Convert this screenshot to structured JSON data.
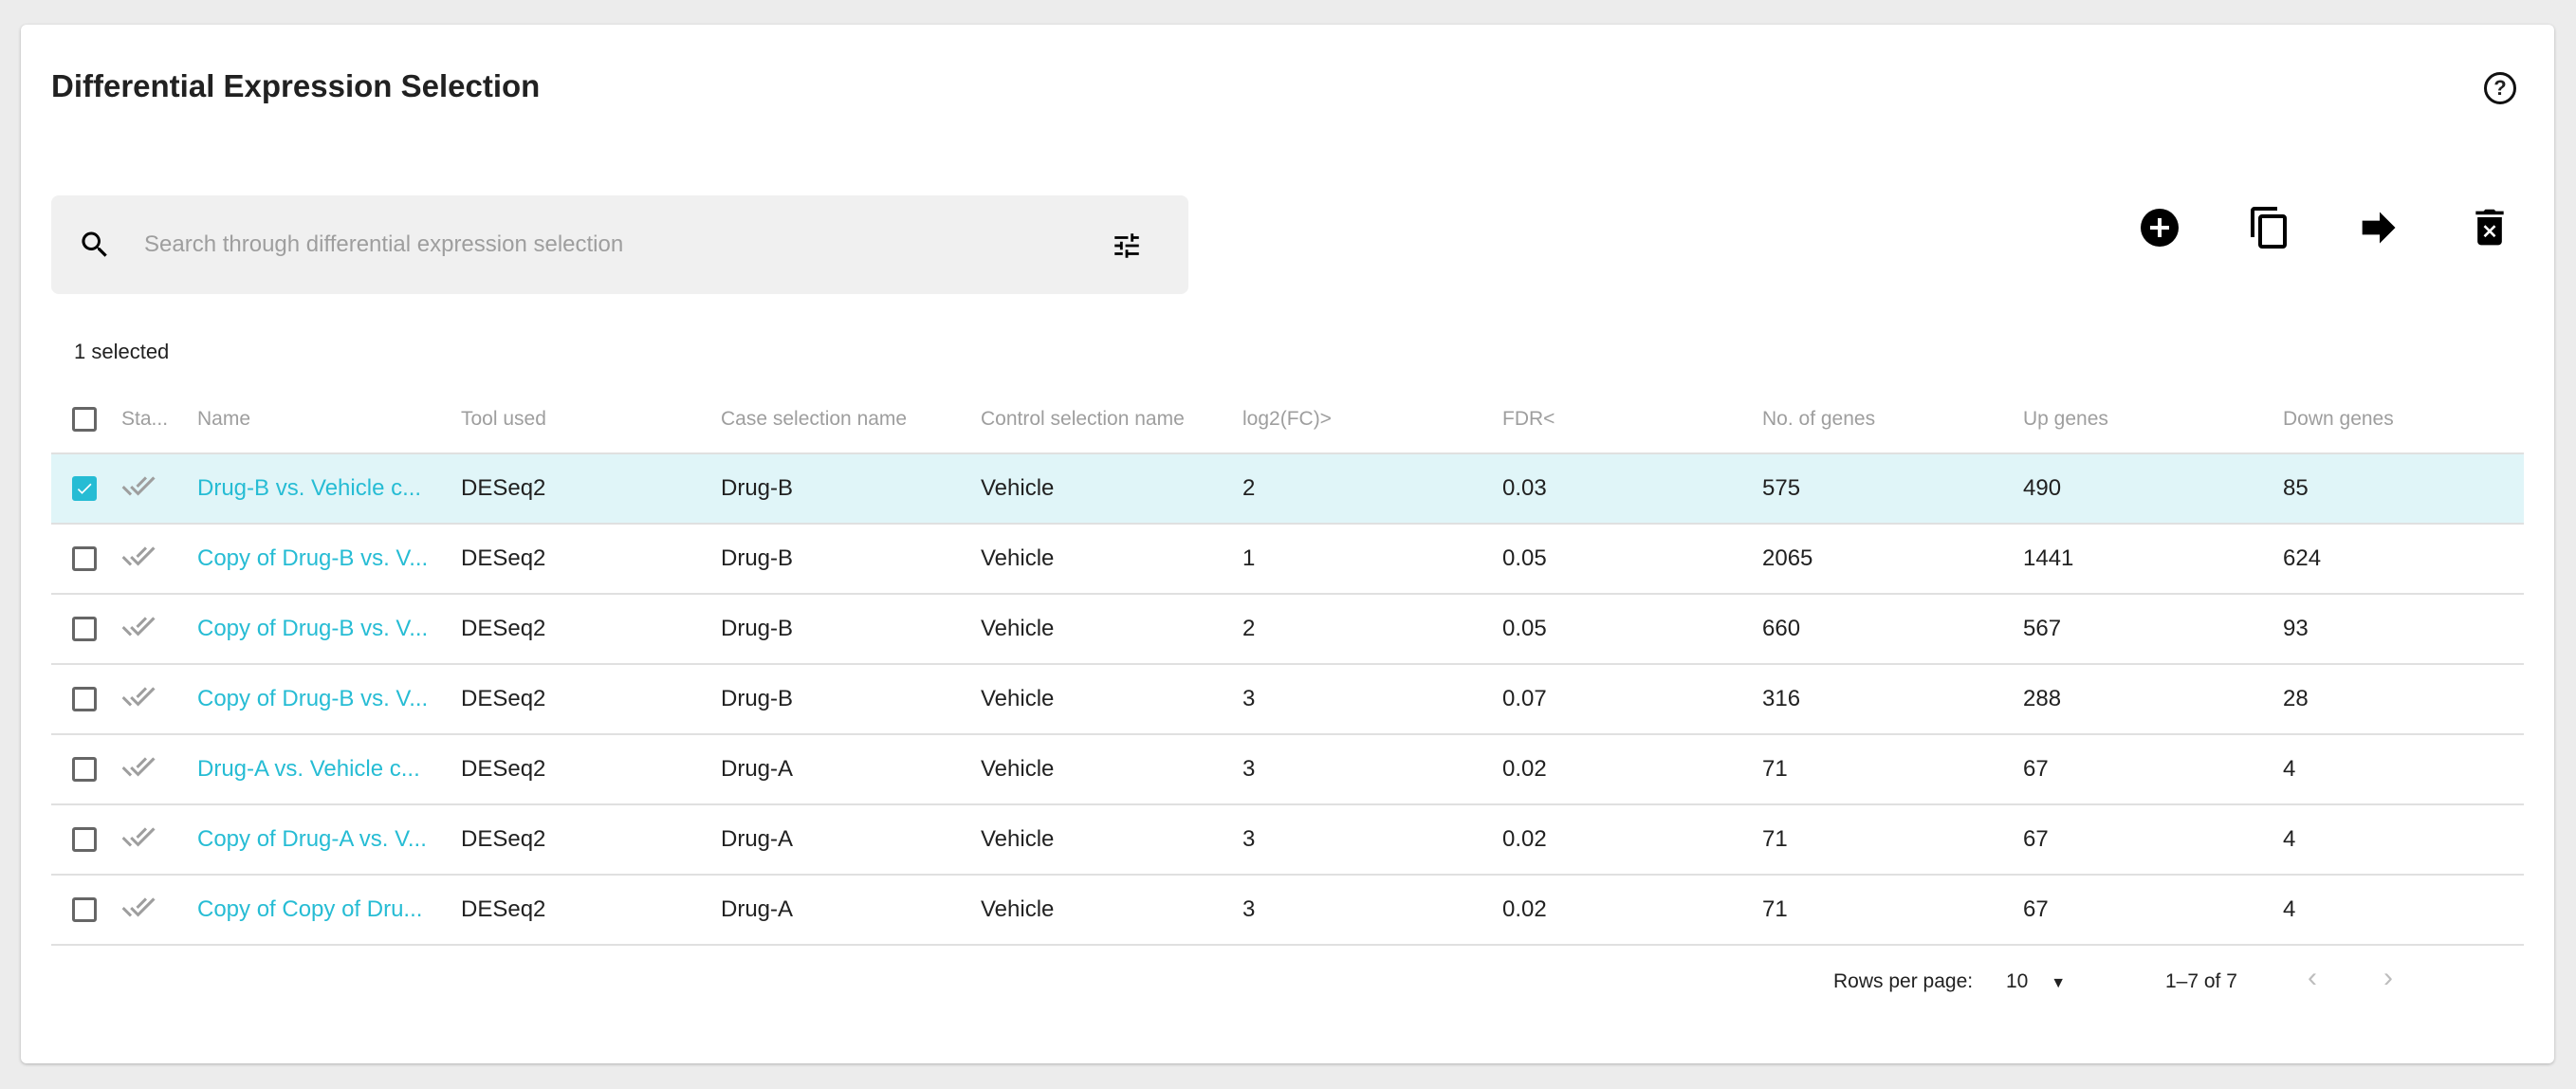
{
  "header": {
    "title": "Differential Expression Selection",
    "help_icon": "help-circle-icon"
  },
  "search": {
    "placeholder": "Search through differential expression selection",
    "value": ""
  },
  "toolbar": [
    "add-circle-icon",
    "copy-icon",
    "arrow-right-icon",
    "delete-icon"
  ],
  "selection": {
    "count_label": "1 selected"
  },
  "table": {
    "columns": [
      "Sta...",
      "Name",
      "Tool used",
      "Case selection name",
      "Control selection name",
      "log2(FC)>",
      "FDR<",
      "No. of genes",
      "Up genes",
      "Down genes"
    ],
    "rows": [
      {
        "selected": true,
        "name": "Drug-B vs. Vehicle c...",
        "tool": "DESeq2",
        "case": "Drug-B",
        "control": "Vehicle",
        "log2fc": "2",
        "fdr": "0.03",
        "genes": "575",
        "up": "490",
        "down": "85"
      },
      {
        "selected": false,
        "name": "Copy of Drug-B vs. V...",
        "tool": "DESeq2",
        "case": "Drug-B",
        "control": "Vehicle",
        "log2fc": "1",
        "fdr": "0.05",
        "genes": "2065",
        "up": "1441",
        "down": "624"
      },
      {
        "selected": false,
        "name": "Copy of Drug-B vs. V...",
        "tool": "DESeq2",
        "case": "Drug-B",
        "control": "Vehicle",
        "log2fc": "2",
        "fdr": "0.05",
        "genes": "660",
        "up": "567",
        "down": "93"
      },
      {
        "selected": false,
        "name": "Copy of Drug-B vs. V...",
        "tool": "DESeq2",
        "case": "Drug-B",
        "control": "Vehicle",
        "log2fc": "3",
        "fdr": "0.07",
        "genes": "316",
        "up": "288",
        "down": "28"
      },
      {
        "selected": false,
        "name": "Drug-A vs. Vehicle c...",
        "tool": "DESeq2",
        "case": "Drug-A",
        "control": "Vehicle",
        "log2fc": "3",
        "fdr": "0.02",
        "genes": "71",
        "up": "67",
        "down": "4"
      },
      {
        "selected": false,
        "name": "Copy of Drug-A vs. V...",
        "tool": "DESeq2",
        "case": "Drug-A",
        "control": "Vehicle",
        "log2fc": "3",
        "fdr": "0.02",
        "genes": "71",
        "up": "67",
        "down": "4"
      },
      {
        "selected": false,
        "name": "Copy of Copy of Dru...",
        "tool": "DESeq2",
        "case": "Drug-A",
        "control": "Vehicle",
        "log2fc": "3",
        "fdr": "0.02",
        "genes": "71",
        "up": "67",
        "down": "4"
      }
    ]
  },
  "pagination": {
    "rows_per_page_label": "Rows per page:",
    "rows_per_page": "10",
    "range": "1–7 of 7"
  },
  "colors": {
    "accent": "#26bcd4",
    "selected_row": "#e0f5f8"
  }
}
